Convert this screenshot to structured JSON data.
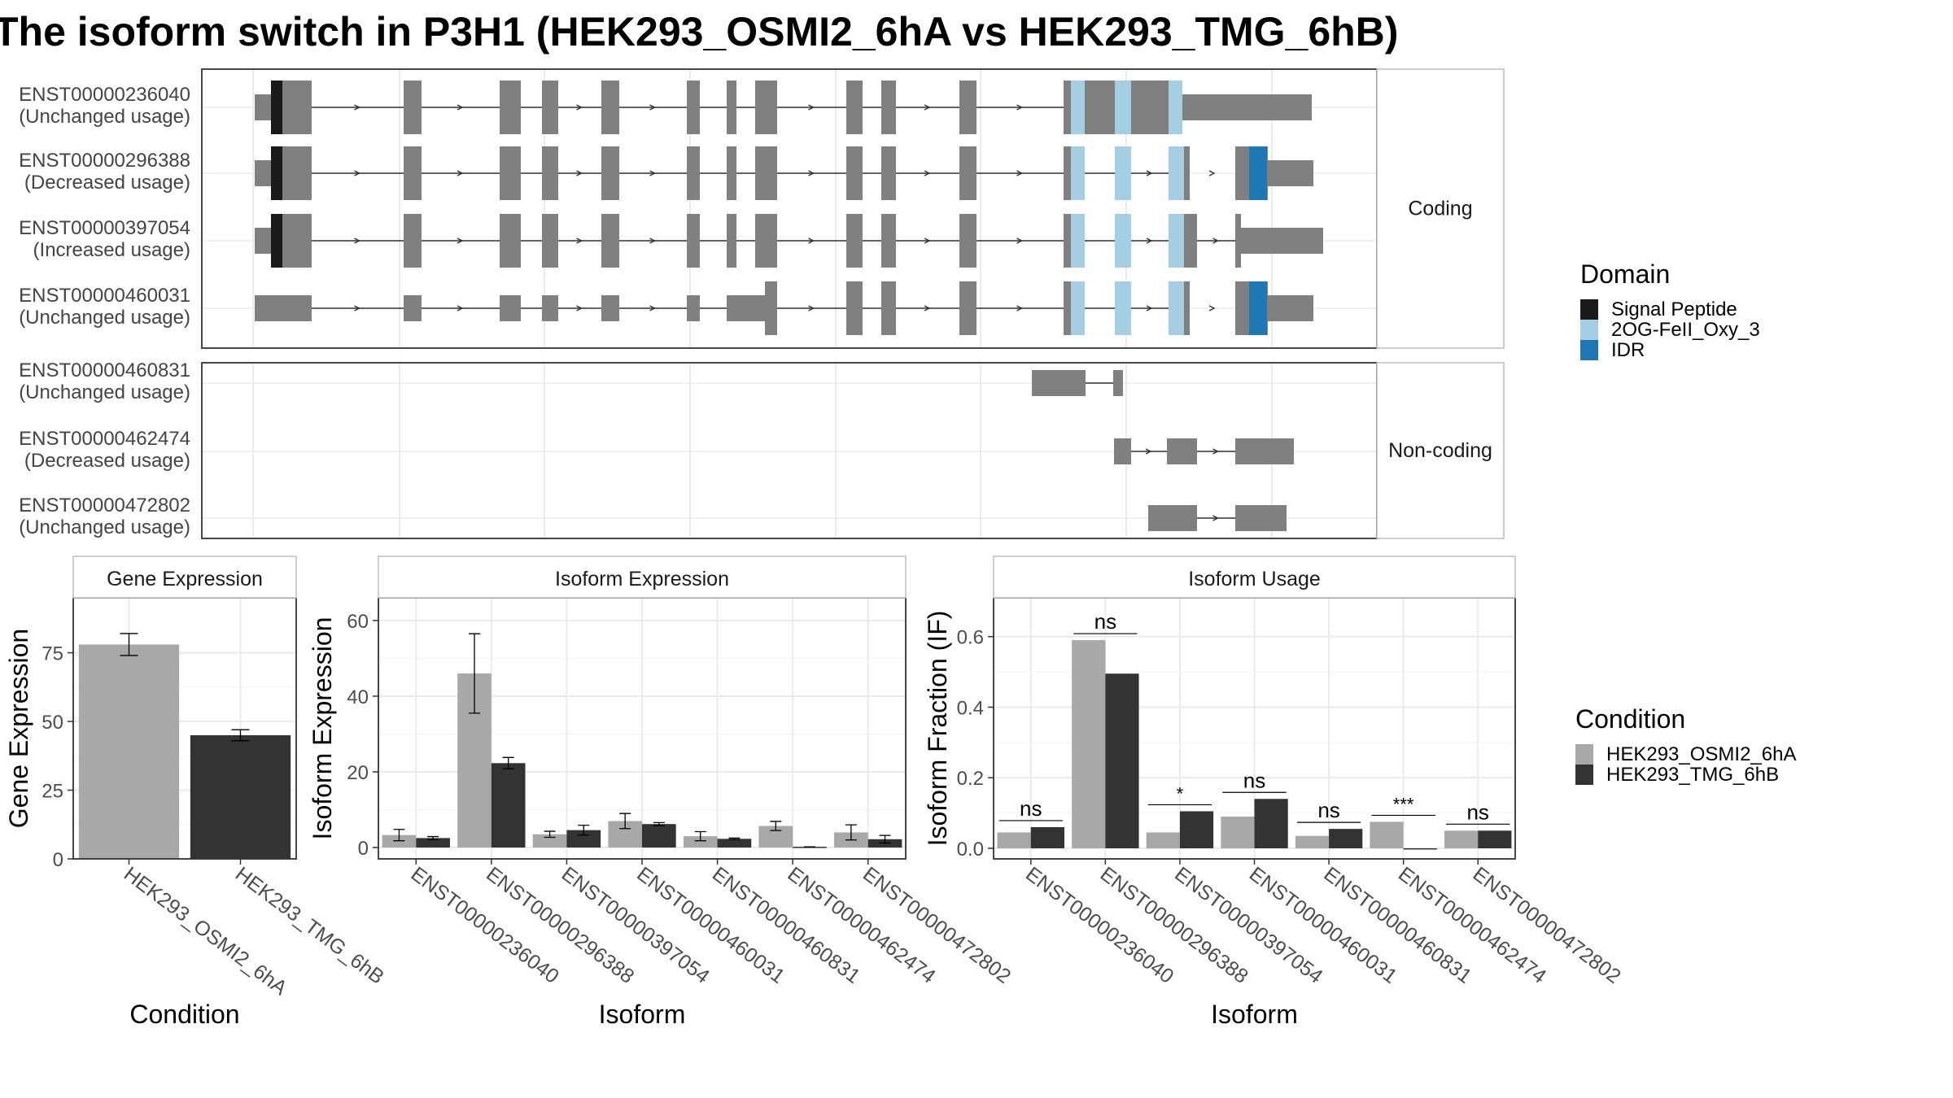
{
  "title": "The isoform switch in P3H1 (HEK293_OSMI2_6hA vs HEK293_TMG_6hB)",
  "colors": {
    "exon": "#808080",
    "signal_peptide": "#1a1a1a",
    "oxy": "#a6cee3",
    "idr": "#1f78b4",
    "cond_a": "#a8a8a8",
    "cond_b": "#333333",
    "grid": "#ebebeb",
    "panel_border": "#333333",
    "strip_border": "#bdbdbd"
  },
  "structure": {
    "groups": [
      {
        "label": "Coding",
        "isoforms": [
          {
            "id": "ENST00000236040",
            "usage": "(Unchanged usage)"
          },
          {
            "id": "ENST00000296388",
            "usage": "(Decreased usage)"
          },
          {
            "id": "ENST00000397054",
            "usage": "(Increased usage)"
          },
          {
            "id": "ENST00000460031",
            "usage": "(Unchanged usage)"
          }
        ]
      },
      {
        "label": "Non-coding",
        "isoforms": [
          {
            "id": "ENST00000460831",
            "usage": "(Unchanged usage)"
          },
          {
            "id": "ENST00000462474",
            "usage": "(Decreased usage)"
          },
          {
            "id": "ENST00000472802",
            "usage": "(Unchanged usage)"
          }
        ]
      }
    ]
  },
  "legend_domain": {
    "title": "Domain",
    "items": [
      {
        "label": "Signal Peptide",
        "color": "#1a1a1a"
      },
      {
        "label": "2OG-FeII_Oxy_3",
        "color": "#a6cee3"
      },
      {
        "label": "IDR",
        "color": "#1f78b4"
      }
    ]
  },
  "legend_condition": {
    "title": "Condition",
    "items": [
      {
        "label": "HEK293_OSMI2_6hA",
        "color": "#a8a8a8"
      },
      {
        "label": "HEK293_TMG_6hB",
        "color": "#333333"
      }
    ]
  },
  "chart_data": [
    {
      "type": "bar",
      "title": "Gene Expression",
      "xlabel": "Condition",
      "ylabel": "Gene Expression",
      "categories": [
        "HEK293_OSMI2_6hA",
        "HEK293_TMG_6hB"
      ],
      "values": [
        78,
        45
      ],
      "errors": [
        4,
        2
      ],
      "ylim": [
        0,
        95
      ],
      "yticks": [
        0,
        25,
        50,
        75
      ]
    },
    {
      "type": "bar",
      "title": "Isoform Expression",
      "xlabel": "Isoform",
      "ylabel": "Isoform Expression",
      "categories": [
        "ENST00000236040",
        "ENST00000296388",
        "ENST00000397054",
        "ENST00000460031",
        "ENST00000460831",
        "ENST00000462474",
        "ENST00000472802"
      ],
      "series": [
        {
          "name": "HEK293_OSMI2_6hA",
          "values": [
            3.3,
            46,
            3.5,
            7,
            3,
            5.7,
            4
          ],
          "errors": [
            1.5,
            10.5,
            0.8,
            2,
            1.2,
            1.2,
            2
          ]
        },
        {
          "name": "HEK293_TMG_6hB",
          "values": [
            2.5,
            22.3,
            4.6,
            6.2,
            2.3,
            0.2,
            2.2
          ],
          "errors": [
            0.4,
            1.5,
            1.3,
            0.4,
            0.2,
            0,
            1
          ]
        }
      ],
      "ylim": [
        -3,
        66
      ],
      "yticks": [
        0,
        20,
        40,
        60
      ]
    },
    {
      "type": "bar",
      "title": "Isoform Usage",
      "xlabel": "Isoform",
      "ylabel": "Isoform Fraction (IF)",
      "categories": [
        "ENST00000236040",
        "ENST00000296388",
        "ENST00000397054",
        "ENST00000460031",
        "ENST00000460831",
        "ENST00000462474",
        "ENST00000472802"
      ],
      "series": [
        {
          "name": "HEK293_OSMI2_6hA",
          "values": [
            0.045,
            0.59,
            0.045,
            0.09,
            0.035,
            0.075,
            0.05
          ]
        },
        {
          "name": "HEK293_TMG_6hB",
          "values": [
            0.06,
            0.495,
            0.105,
            0.14,
            0.055,
            0,
            0.05
          ]
        }
      ],
      "significance": [
        "ns",
        "ns",
        "*",
        "ns",
        "ns",
        "***",
        "ns"
      ],
      "ylim": [
        -0.03,
        0.71
      ],
      "yticks": [
        0.0,
        0.2,
        0.4,
        0.6
      ]
    }
  ]
}
